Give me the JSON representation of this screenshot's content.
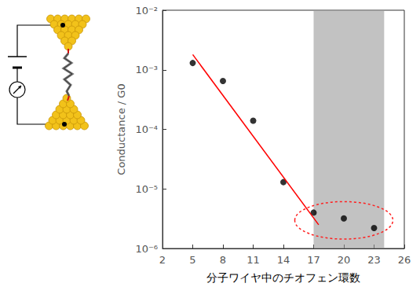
{
  "chart_data": {
    "type": "scatter",
    "xlabel": "分子ワイヤ中のチオフェン環数",
    "ylabel": "Conductance / G0",
    "log": "y",
    "grid": false,
    "xlim": [
      2,
      26
    ],
    "xticks": [
      2,
      5,
      8,
      11,
      14,
      17,
      20,
      23,
      26
    ],
    "ylim": [
      1e-06,
      0.01
    ],
    "yticks": [
      {
        "value": 1e-06,
        "label": "10⁻⁶"
      },
      {
        "value": 1e-05,
        "label": "10⁻⁵"
      },
      {
        "value": 0.0001,
        "label": "10⁻⁴"
      },
      {
        "value": 0.001,
        "label": "10⁻³"
      },
      {
        "value": 0.01,
        "label": "10⁻²"
      }
    ],
    "series": [
      {
        "type": "scatter",
        "color": "#000000",
        "marker": "circle",
        "x": [
          5,
          8,
          11,
          14,
          17,
          20,
          23
        ],
        "values": [
          0.0013,
          0.00065,
          0.00014,
          1.3e-05,
          4e-06,
          3.2e-06,
          2.2e-06
        ]
      },
      {
        "type": "line",
        "color": "#ff0000",
        "line_style": "solid",
        "x": [
          5,
          17.5
        ],
        "values": [
          0.0018,
          2.5e-06
        ]
      }
    ],
    "highlight": {
      "x": [
        17,
        24
      ],
      "color": "#9a9a9a"
    }
  }
}
